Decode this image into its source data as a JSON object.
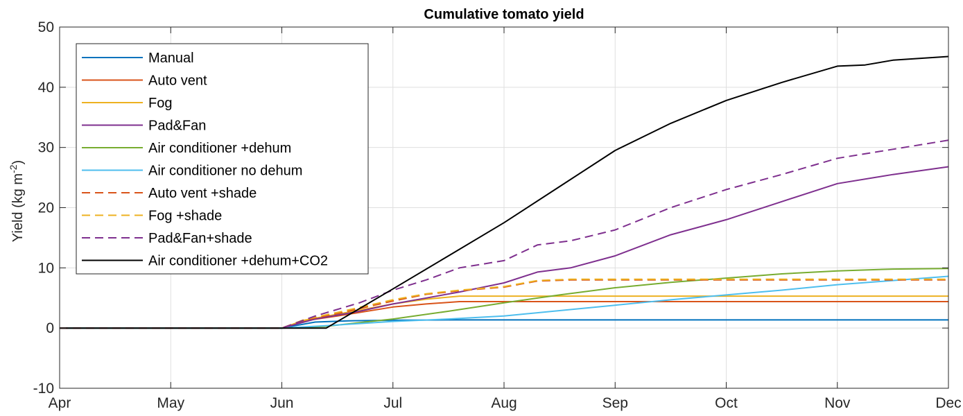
{
  "chart_data": {
    "type": "line",
    "title": "Cumulative tomato yield",
    "xlabel": "",
    "ylabel": "Yield (kg m",
    "ylabel_sup": "-2",
    "ylabel_end": ")",
    "x_ticks": [
      "Apr",
      "May",
      "Jun",
      "Jul",
      "Aug",
      "Sep",
      "Oct",
      "Nov",
      "Dec"
    ],
    "xlim": [
      0,
      8
    ],
    "ylim": [
      -10,
      50
    ],
    "y_ticks": [
      -10,
      0,
      10,
      20,
      30,
      40,
      50
    ],
    "grid": true,
    "legend_position": "top-left",
    "series": [
      {
        "name": "Manual",
        "color": "#0072BD",
        "dash": false,
        "points": [
          [
            0,
            0
          ],
          [
            2,
            0
          ],
          [
            2.3,
            1.0
          ],
          [
            2.6,
            1.2
          ],
          [
            3,
            1.3
          ],
          [
            3.5,
            1.35
          ],
          [
            8,
            1.35
          ]
        ]
      },
      {
        "name": "Auto vent",
        "color": "#D95319",
        "dash": false,
        "points": [
          [
            0,
            0
          ],
          [
            2,
            0
          ],
          [
            2.2,
            1.2
          ],
          [
            2.5,
            2.0
          ],
          [
            3,
            3.5
          ],
          [
            3.3,
            4.0
          ],
          [
            3.6,
            4.4
          ],
          [
            8,
            4.4
          ]
        ]
      },
      {
        "name": "Fog",
        "color": "#EDB120",
        "dash": false,
        "points": [
          [
            0,
            0
          ],
          [
            2,
            0
          ],
          [
            2.2,
            1.3
          ],
          [
            2.5,
            2.3
          ],
          [
            3,
            4.0
          ],
          [
            3.3,
            4.8
          ],
          [
            3.6,
            5.3
          ],
          [
            8,
            5.3
          ]
        ]
      },
      {
        "name": "Pad&Fan",
        "color": "#7E2F8E",
        "dash": false,
        "points": [
          [
            0,
            0
          ],
          [
            2,
            0
          ],
          [
            2.3,
            1.5
          ],
          [
            2.7,
            2.8
          ],
          [
            3,
            4.0
          ],
          [
            3.3,
            5.0
          ],
          [
            3.6,
            6.0
          ],
          [
            4,
            7.5
          ],
          [
            4.3,
            9.3
          ],
          [
            4.6,
            10.0
          ],
          [
            5,
            12.0
          ],
          [
            5.5,
            15.5
          ],
          [
            6,
            18.0
          ],
          [
            6.5,
            21.0
          ],
          [
            7,
            24.0
          ],
          [
            7.5,
            25.5
          ],
          [
            8,
            26.8
          ]
        ]
      },
      {
        "name": "Air conditioner +dehum",
        "color": "#77AC30",
        "dash": false,
        "points": [
          [
            0,
            0
          ],
          [
            2,
            0
          ],
          [
            2.4,
            0.3
          ],
          [
            3,
            1.5
          ],
          [
            3.5,
            2.8
          ],
          [
            4,
            4.2
          ],
          [
            4.5,
            5.5
          ],
          [
            5,
            6.7
          ],
          [
            5.5,
            7.6
          ],
          [
            6,
            8.3
          ],
          [
            6.5,
            9.0
          ],
          [
            7,
            9.5
          ],
          [
            7.5,
            9.8
          ],
          [
            8,
            9.9
          ]
        ]
      },
      {
        "name": "Air conditioner no dehum",
        "color": "#4DBEEE",
        "dash": false,
        "points": [
          [
            0,
            0
          ],
          [
            2,
            0
          ],
          [
            2.4,
            0.4
          ],
          [
            3,
            1.1
          ],
          [
            3.5,
            1.5
          ],
          [
            4,
            2.0
          ],
          [
            4.5,
            2.9
          ],
          [
            5,
            3.8
          ],
          [
            5.5,
            4.7
          ],
          [
            6,
            5.5
          ],
          [
            6.5,
            6.3
          ],
          [
            7,
            7.2
          ],
          [
            7.5,
            7.9
          ],
          [
            8,
            8.6
          ]
        ]
      },
      {
        "name": "Auto vent +shade",
        "color": "#D95319",
        "dash": true,
        "points": [
          [
            0,
            0
          ],
          [
            2,
            0
          ],
          [
            2.2,
            1.3
          ],
          [
            2.5,
            2.4
          ],
          [
            3,
            4.5
          ],
          [
            3.3,
            5.6
          ],
          [
            3.6,
            6.2
          ],
          [
            4,
            6.8
          ],
          [
            4.3,
            7.8
          ],
          [
            4.6,
            8.0
          ],
          [
            8,
            8.0
          ]
        ]
      },
      {
        "name": "Fog +shade",
        "color": "#EDB120",
        "dash": true,
        "points": [
          [
            0,
            0
          ],
          [
            2,
            0
          ],
          [
            2.2,
            1.4
          ],
          [
            2.5,
            2.6
          ],
          [
            3,
            4.7
          ],
          [
            3.3,
            5.7
          ],
          [
            3.6,
            6.3
          ],
          [
            4,
            6.9
          ],
          [
            4.3,
            7.9
          ],
          [
            4.6,
            8.1
          ],
          [
            8,
            8.1
          ]
        ]
      },
      {
        "name": "Pad&Fan+shade",
        "color": "#7E2F8E",
        "dash": true,
        "points": [
          [
            0,
            0
          ],
          [
            2,
            0
          ],
          [
            2.3,
            2.0
          ],
          [
            2.7,
            4.2
          ],
          [
            3,
            6.3
          ],
          [
            3.3,
            8.0
          ],
          [
            3.6,
            10.0
          ],
          [
            4,
            11.2
          ],
          [
            4.3,
            13.8
          ],
          [
            4.6,
            14.5
          ],
          [
            5,
            16.3
          ],
          [
            5.5,
            20.0
          ],
          [
            6,
            23.0
          ],
          [
            6.5,
            25.5
          ],
          [
            7,
            28.2
          ],
          [
            7.5,
            29.7
          ],
          [
            8,
            31.2
          ]
        ]
      },
      {
        "name": "Air conditioner +dehum+CO2",
        "color": "#000000",
        "dash": false,
        "points": [
          [
            0,
            0
          ],
          [
            2.4,
            0
          ],
          [
            3,
            6.5
          ],
          [
            3.5,
            12.0
          ],
          [
            4,
            17.5
          ],
          [
            4.5,
            23.5
          ],
          [
            5,
            29.5
          ],
          [
            5.5,
            34.0
          ],
          [
            6,
            37.8
          ],
          [
            6.5,
            40.8
          ],
          [
            7,
            43.5
          ],
          [
            7.25,
            43.7
          ],
          [
            7.5,
            44.5
          ],
          [
            8,
            45.1
          ]
        ]
      }
    ]
  }
}
